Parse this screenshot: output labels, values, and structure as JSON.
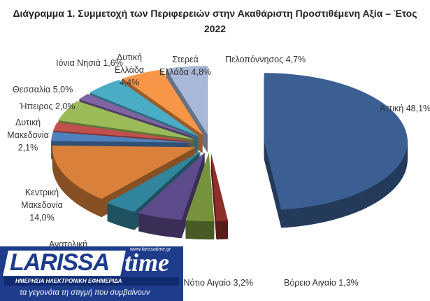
{
  "chart_data": {
    "type": "pie3d",
    "title": "Διάγραμμα 1. Συμμετοχή των Περιφερειών στην Ακαθάριστη Προστιθέμενη Αξία – Έτος 2022",
    "categories": [
      "Αττική",
      "Βόρειο Αιγαίο",
      "Νότιο Αιγαίο",
      null,
      "Ανατολική",
      "Κεντρική Μακεδονία",
      "Δυτική Μακεδονία",
      "Ήπειρος",
      "Θεσσαλία",
      "Ιόνια Νησιά",
      "Δυτική Ελλάδα",
      "Στερεά Ελλάδα",
      "Πελοπόννησος"
    ],
    "values": [
      48.1,
      1.3,
      3.2,
      5.1,
      3.7,
      14.0,
      2.1,
      2.0,
      5.0,
      1.6,
      4.4,
      4.8,
      4.7
    ],
    "value_labels": [
      "48,1%",
      "1,3%",
      "3,2%",
      null,
      null,
      "14,0%",
      "2,1%",
      "2,0%",
      "5,0%",
      "1,6%",
      "4,4%",
      "4,8%",
      "4,7%"
    ],
    "colors": [
      "#3b5f92",
      "#8e2f2b",
      "#76923c",
      "#5e4b8b",
      "#31859c",
      "#d9813a",
      "#4f81bd",
      "#c0504d",
      "#9bbb59",
      "#8064a2",
      "#4bacc6",
      "#f79646",
      "#a8b8d8"
    ]
  },
  "logo": {
    "name": "LARISSA",
    "name2": "time",
    "url": "www.larissatime.gr",
    "subtitle": "ΗΜΕΡΗΣΙΑ ΗΛΕΚΤΡΟΝΙΚΗ ΕΦΗΜΕΡΙΔΑ",
    "slogan": "τα γεγονότα τη στιγμή που συμβαίνουν"
  }
}
